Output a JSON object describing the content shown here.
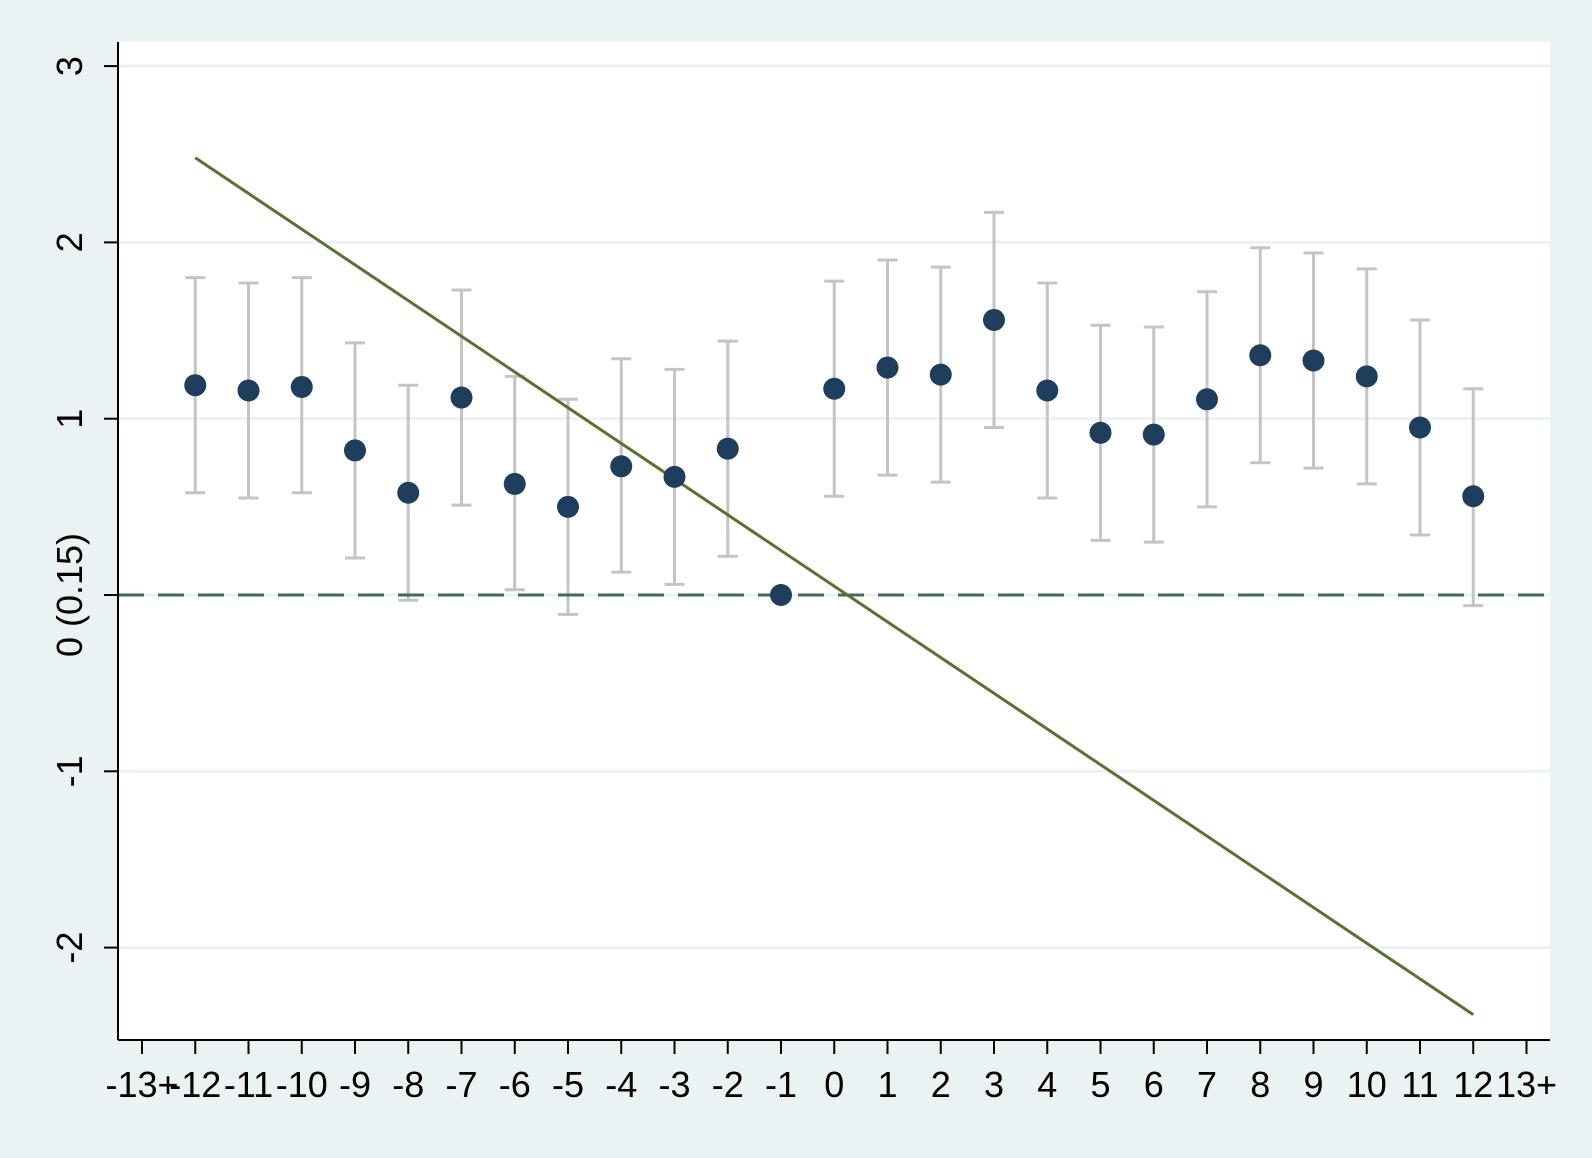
{
  "chart_data": {
    "type": "scatter",
    "x_tick_labels": [
      "-13+",
      "-12",
      "-11",
      "-10",
      "-9",
      "-8",
      "-7",
      "-6",
      "-5",
      "-4",
      "-3",
      "-2",
      "-1",
      "0",
      "1",
      "2",
      "3",
      "4",
      "5",
      "6",
      "7",
      "8",
      "9",
      "10",
      "11",
      "12",
      "13+"
    ],
    "y_tick_labels": [
      "-2",
      "-1",
      "0 (0.15)",
      "1",
      "2",
      "3"
    ],
    "xlim": [
      -13,
      13
    ],
    "ylim": [
      -2.5,
      3.15
    ],
    "y_ticks": [
      -2,
      -1,
      0,
      1,
      2,
      3
    ],
    "grid": "horizontal",
    "reference_line_y": 0,
    "series": [
      {
        "x": [
          -12,
          -11,
          -10,
          -9,
          -8,
          -7,
          -6,
          -5,
          -4,
          -3,
          -2,
          -1,
          0,
          1,
          2,
          3,
          4,
          5,
          6,
          7,
          8,
          9,
          10,
          11,
          12
        ],
        "y": [
          1.19,
          1.16,
          1.18,
          0.82,
          0.58,
          1.12,
          0.63,
          0.5,
          0.73,
          0.67,
          0.83,
          0.0,
          1.17,
          1.29,
          1.25,
          1.56,
          1.16,
          0.92,
          0.91,
          1.11,
          1.36,
          1.33,
          1.24,
          0.95,
          0.56
        ],
        "ci_low": [
          0.58,
          0.55,
          0.58,
          0.21,
          -0.03,
          0.51,
          0.03,
          -0.11,
          0.13,
          0.06,
          0.22,
          null,
          0.56,
          0.68,
          0.64,
          0.95,
          0.55,
          0.31,
          0.3,
          0.5,
          0.75,
          0.72,
          0.63,
          0.34,
          -0.06
        ],
        "ci_high": [
          1.8,
          1.77,
          1.8,
          1.43,
          1.19,
          1.73,
          1.24,
          1.11,
          1.34,
          1.28,
          1.44,
          null,
          1.78,
          1.9,
          1.86,
          2.17,
          1.77,
          1.53,
          1.52,
          1.72,
          1.97,
          1.94,
          1.85,
          1.56,
          1.17
        ]
      }
    ],
    "trend_line": {
      "x": [
        -12,
        12
      ],
      "y": [
        2.48,
        -2.38
      ]
    },
    "colors": {
      "points": "#1f3d5c",
      "error_bars": "#c4c4c4",
      "trend_line": "#5b7032",
      "reference_line": "#3d6b5c",
      "grid": "#eaf2f3",
      "plot_background": "#ffffff",
      "page_background": "#eaf2f3"
    }
  }
}
